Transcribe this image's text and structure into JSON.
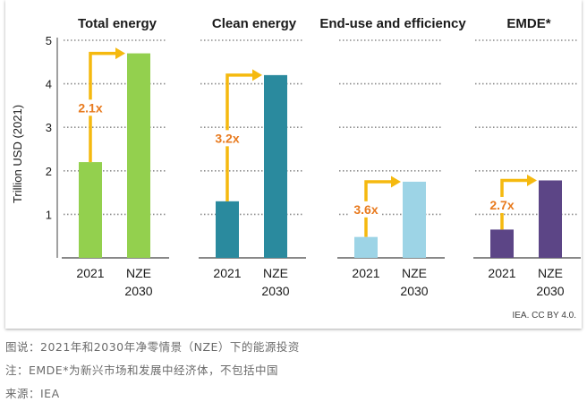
{
  "chart_data": {
    "type": "bar",
    "ylabel": "Trillion USD (2021)",
    "ylim": [
      0,
      5
    ],
    "yticks": [
      1,
      2,
      3,
      4,
      5
    ],
    "grid": true,
    "source_note": "IEA. CC BY 4.0.",
    "colors": {
      "grid": "#8c8c8c",
      "axis": "#404040",
      "arrow": "#f5b90f",
      "multiplier_text": "#e87a1e"
    },
    "panels": [
      {
        "title": "Total energy",
        "categories": [
          [
            "2021"
          ],
          [
            "NZE",
            "2030"
          ]
        ],
        "values": [
          2.2,
          4.7
        ],
        "colors": [
          "#93d04e",
          "#93d04e"
        ],
        "multiplier": "2.1x"
      },
      {
        "title": "Clean energy",
        "categories": [
          [
            "2021"
          ],
          [
            "NZE",
            "2030"
          ]
        ],
        "values": [
          1.3,
          4.2
        ],
        "colors": [
          "#2a8a9e",
          "#2a8a9e"
        ],
        "multiplier": "3.2x"
      },
      {
        "title": "End-use and efficiency",
        "categories": [
          [
            "2021"
          ],
          [
            "NZE",
            "2030"
          ]
        ],
        "values": [
          0.48,
          1.75
        ],
        "colors": [
          "#9dd4e6",
          "#9dd4e6"
        ],
        "multiplier": "3.6x"
      },
      {
        "title": "EMDE*",
        "categories": [
          [
            "2021"
          ],
          [
            "NZE",
            "2030"
          ]
        ],
        "values": [
          0.65,
          1.78
        ],
        "colors": [
          "#5c4586",
          "#5c4586"
        ],
        "multiplier": "2.7x"
      }
    ]
  },
  "captions": {
    "line1": "图说：2021年和2030年净零情景（NZE）下的能源投资",
    "line2": "注：EMDE*为新兴市场和发展中经济体，不包括中国",
    "line3": "来源：IEA"
  }
}
